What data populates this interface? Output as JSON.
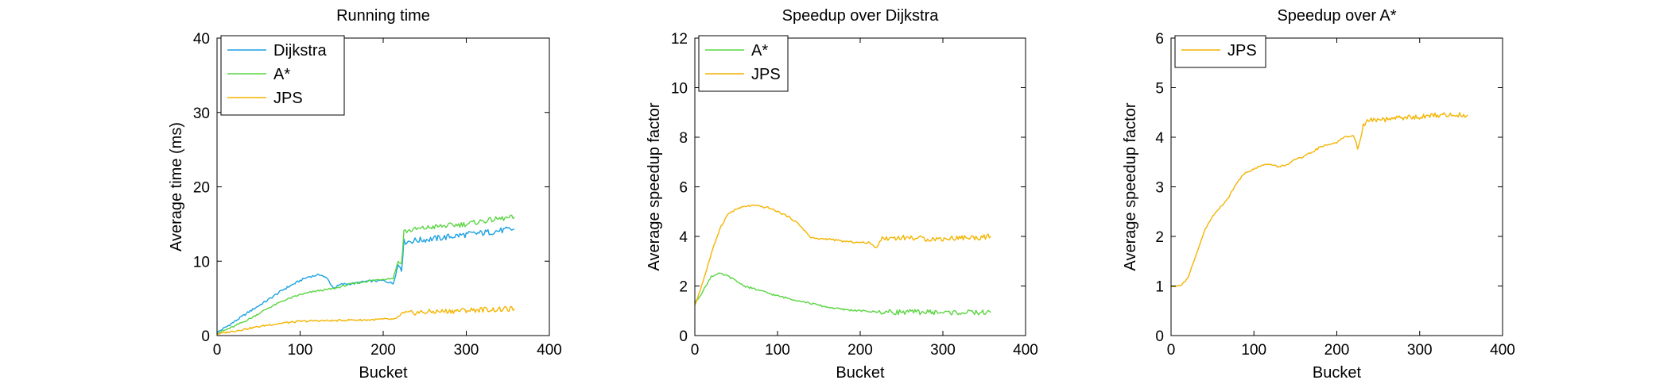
{
  "figure": {
    "background": "#ffffff",
    "colors": {
      "Dijkstra": "#1ba1e2",
      "A*": "#5ad543",
      "JPS": "#f4b400"
    }
  },
  "chart_data": [
    {
      "type": "line",
      "title": "Running time",
      "xlabel": "Bucket",
      "ylabel": "Average time (ms)",
      "xlim": [
        0,
        400
      ],
      "ylim": [
        0,
        40
      ],
      "xticks": [
        0,
        100,
        200,
        300,
        400
      ],
      "yticks": [
        0,
        10,
        20,
        30,
        40
      ],
      "legend_position": "top-left",
      "grid": false,
      "series": [
        {
          "name": "Dijkstra",
          "color": "#1ba1e2",
          "points": [
            [
              0,
              0.4
            ],
            [
              20,
              1.8
            ],
            [
              40,
              3.3
            ],
            [
              60,
              4.7
            ],
            [
              80,
              6.2
            ],
            [
              100,
              7.4
            ],
            [
              110,
              7.9
            ],
            [
              125,
              8.2
            ],
            [
              133,
              7.6
            ],
            [
              140,
              6.4
            ],
            [
              150,
              6.9
            ],
            [
              165,
              7.0
            ],
            [
              180,
              7.3
            ],
            [
              200,
              7.4
            ],
            [
              212,
              7.0
            ],
            [
              218,
              9.5
            ],
            [
              222,
              9.0
            ],
            [
              225,
              12.6
            ],
            [
              240,
              12.8
            ],
            [
              260,
              13.0
            ],
            [
              280,
              13.3
            ],
            [
              300,
              13.6
            ],
            [
              320,
              13.8
            ],
            [
              340,
              14.1
            ],
            [
              358,
              14.3
            ]
          ]
        },
        {
          "name": "A*",
          "color": "#5ad543",
          "points": [
            [
              0,
              0.3
            ],
            [
              20,
              1.2
            ],
            [
              40,
              2.3
            ],
            [
              60,
              3.6
            ],
            [
              80,
              4.7
            ],
            [
              100,
              5.5
            ],
            [
              120,
              6.0
            ],
            [
              140,
              6.3
            ],
            [
              160,
              6.9
            ],
            [
              180,
              7.3
            ],
            [
              200,
              7.6
            ],
            [
              212,
              7.7
            ],
            [
              218,
              10.0
            ],
            [
              222,
              9.6
            ],
            [
              225,
              14.0
            ],
            [
              240,
              14.3
            ],
            [
              260,
              14.6
            ],
            [
              280,
              14.8
            ],
            [
              300,
              15.0
            ],
            [
              320,
              15.4
            ],
            [
              340,
              15.7
            ],
            [
              358,
              15.9
            ]
          ]
        },
        {
          "name": "JPS",
          "color": "#f4b400",
          "points": [
            [
              0,
              0.2
            ],
            [
              20,
              0.6
            ],
            [
              40,
              1.0
            ],
            [
              60,
              1.4
            ],
            [
              80,
              1.7
            ],
            [
              100,
              1.9
            ],
            [
              120,
              2.0
            ],
            [
              140,
              2.0
            ],
            [
              160,
              2.1
            ],
            [
              180,
              2.1
            ],
            [
              200,
              2.2
            ],
            [
              215,
              2.2
            ],
            [
              222,
              2.9
            ],
            [
              240,
              3.1
            ],
            [
              260,
              3.2
            ],
            [
              280,
              3.3
            ],
            [
              300,
              3.4
            ],
            [
              320,
              3.5
            ],
            [
              340,
              3.5
            ],
            [
              358,
              3.6
            ]
          ]
        }
      ]
    },
    {
      "type": "line",
      "title": "Speedup over Dijkstra",
      "xlabel": "Bucket",
      "ylabel": "Average speedup factor",
      "xlim": [
        0,
        400
      ],
      "ylim": [
        0,
        12
      ],
      "xticks": [
        0,
        100,
        200,
        300,
        400
      ],
      "yticks": [
        0,
        2,
        4,
        6,
        8,
        10,
        12
      ],
      "legend_position": "top-left",
      "grid": false,
      "series": [
        {
          "name": "A*",
          "color": "#5ad543",
          "points": [
            [
              0,
              1.3
            ],
            [
              10,
              1.8
            ],
            [
              20,
              2.4
            ],
            [
              30,
              2.5
            ],
            [
              40,
              2.4
            ],
            [
              50,
              2.2
            ],
            [
              60,
              2.0
            ],
            [
              80,
              1.8
            ],
            [
              100,
              1.6
            ],
            [
              120,
              1.45
            ],
            [
              140,
              1.3
            ],
            [
              160,
              1.15
            ],
            [
              180,
              1.05
            ],
            [
              200,
              1.0
            ],
            [
              220,
              0.95
            ],
            [
              240,
              0.95
            ],
            [
              260,
              0.95
            ],
            [
              280,
              0.95
            ],
            [
              300,
              0.93
            ],
            [
              320,
              0.93
            ],
            [
              340,
              0.93
            ],
            [
              358,
              0.93
            ]
          ]
        },
        {
          "name": "JPS",
          "color": "#f4b400",
          "points": [
            [
              0,
              1.2
            ],
            [
              10,
              2.2
            ],
            [
              20,
              3.3
            ],
            [
              30,
              4.3
            ],
            [
              40,
              4.9
            ],
            [
              50,
              5.1
            ],
            [
              60,
              5.2
            ],
            [
              70,
              5.25
            ],
            [
              80,
              5.2
            ],
            [
              90,
              5.15
            ],
            [
              100,
              5.0
            ],
            [
              110,
              4.85
            ],
            [
              120,
              4.65
            ],
            [
              130,
              4.35
            ],
            [
              140,
              3.95
            ],
            [
              150,
              3.9
            ],
            [
              160,
              3.9
            ],
            [
              180,
              3.8
            ],
            [
              200,
              3.75
            ],
            [
              210,
              3.75
            ],
            [
              220,
              3.55
            ],
            [
              225,
              3.9
            ],
            [
              240,
              3.95
            ],
            [
              260,
              3.95
            ],
            [
              280,
              3.9
            ],
            [
              300,
              3.9
            ],
            [
              320,
              3.95
            ],
            [
              340,
              3.95
            ],
            [
              358,
              4.0
            ]
          ]
        }
      ]
    },
    {
      "type": "line",
      "title": "Speedup over A*",
      "xlabel": "Bucket",
      "ylabel": "Average speedup factor",
      "xlim": [
        0,
        400
      ],
      "ylim": [
        0,
        6
      ],
      "xticks": [
        0,
        100,
        200,
        300,
        400
      ],
      "yticks": [
        0,
        1,
        2,
        3,
        4,
        5,
        6
      ],
      "legend_position": "top-left",
      "grid": false,
      "series": [
        {
          "name": "JPS",
          "color": "#f4b400",
          "points": [
            [
              0,
              1.0
            ],
            [
              10,
              1.0
            ],
            [
              20,
              1.15
            ],
            [
              30,
              1.6
            ],
            [
              40,
              2.1
            ],
            [
              50,
              2.4
            ],
            [
              60,
              2.6
            ],
            [
              70,
              2.8
            ],
            [
              80,
              3.1
            ],
            [
              90,
              3.3
            ],
            [
              100,
              3.35
            ],
            [
              110,
              3.45
            ],
            [
              120,
              3.45
            ],
            [
              130,
              3.4
            ],
            [
              140,
              3.45
            ],
            [
              150,
              3.55
            ],
            [
              160,
              3.6
            ],
            [
              170,
              3.7
            ],
            [
              180,
              3.8
            ],
            [
              190,
              3.85
            ],
            [
              200,
              3.9
            ],
            [
              210,
              4.0
            ],
            [
              220,
              4.05
            ],
            [
              225,
              3.75
            ],
            [
              232,
              4.25
            ],
            [
              240,
              4.35
            ],
            [
              260,
              4.35
            ],
            [
              280,
              4.4
            ],
            [
              300,
              4.4
            ],
            [
              320,
              4.45
            ],
            [
              340,
              4.45
            ],
            [
              358,
              4.45
            ]
          ]
        }
      ]
    }
  ]
}
